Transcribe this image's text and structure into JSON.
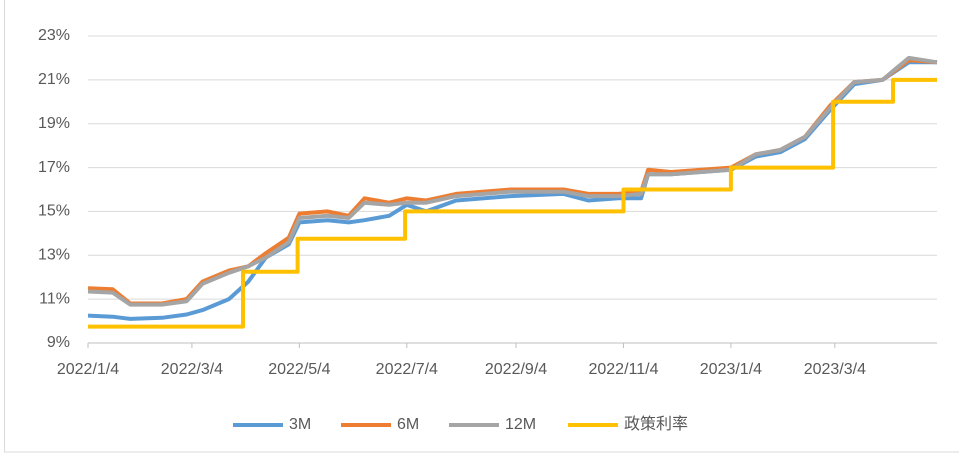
{
  "chart_data": {
    "type": "line",
    "x": [
      "2022/1/4",
      "2022/1/18",
      "2022/1/28",
      "2022/2/15",
      "2022/3/1",
      "2022/3/10",
      "2022/3/25",
      "2022/4/5",
      "2022/4/15",
      "2022/4/28",
      "2022/5/4",
      "2022/5/20",
      "2022/6/1",
      "2022/6/10",
      "2022/6/24",
      "2022/7/4",
      "2022/7/15",
      "2022/8/1",
      "2022/9/1",
      "2022/10/1",
      "2022/10/15",
      "2022/11/1",
      "2022/11/14",
      "2022/11/18",
      "2022/12/1",
      "2023/1/4",
      "2023/1/18",
      "2023/2/1",
      "2023/2/15",
      "2023/3/1",
      "2023/3/15",
      "2023/3/31",
      "2023/4/15",
      "2023/5/1"
    ],
    "series": [
      {
        "name": "3M",
        "color": "#5b9bd5",
        "values": [
          10.25,
          10.2,
          10.1,
          10.15,
          10.3,
          10.5,
          11.0,
          11.8,
          12.9,
          13.5,
          14.5,
          14.6,
          14.5,
          14.6,
          14.8,
          15.3,
          15.0,
          15.5,
          15.7,
          15.8,
          15.5,
          15.6,
          15.6,
          16.7,
          16.7,
          16.9,
          17.5,
          17.7,
          18.3,
          19.6,
          20.8,
          21.0,
          21.8,
          21.8
        ]
      },
      {
        "name": "6M",
        "color": "#ed7d31",
        "values": [
          11.5,
          11.45,
          10.8,
          10.8,
          11.0,
          11.8,
          12.3,
          12.5,
          13.1,
          13.8,
          14.9,
          15.0,
          14.8,
          15.6,
          15.4,
          15.6,
          15.5,
          15.8,
          16.0,
          16.0,
          15.8,
          15.8,
          15.9,
          16.9,
          16.8,
          17.0,
          17.6,
          17.8,
          18.4,
          19.8,
          20.9,
          21.0,
          21.9,
          21.8
        ]
      },
      {
        "name": "12M",
        "color": "#a5a5a5",
        "values": [
          11.35,
          11.3,
          10.75,
          10.75,
          10.9,
          11.7,
          12.2,
          12.5,
          12.9,
          13.6,
          14.7,
          14.8,
          14.7,
          15.4,
          15.3,
          15.4,
          15.4,
          15.7,
          15.9,
          15.9,
          15.7,
          15.7,
          15.8,
          16.7,
          16.7,
          16.9,
          17.6,
          17.8,
          18.4,
          19.7,
          20.9,
          21.0,
          22.0,
          21.8
        ]
      },
      {
        "name": "政策利率",
        "color": "#ffc000",
        "x": [
          "2022/1/4",
          "2022/4/2",
          "2022/4/2",
          "2022/5/3",
          "2022/5/3",
          "2022/7/3",
          "2022/7/3",
          "2022/11/4",
          "2022/11/4",
          "2023/1/4",
          "2023/1/4",
          "2023/3/3",
          "2023/3/3",
          "2023/4/6",
          "2023/4/6",
          "2023/5/1"
        ],
        "values": [
          9.75,
          9.75,
          12.25,
          12.25,
          13.75,
          13.75,
          15,
          15,
          16,
          16,
          17,
          17,
          20,
          20,
          21,
          21
        ]
      }
    ],
    "xlim": [
      "2022/1/4",
      "2023/5/1"
    ],
    "xticks": [
      "2022/1/4",
      "2022/3/4",
      "2022/5/4",
      "2022/7/4",
      "2022/9/4",
      "2022/11/4",
      "2023/1/4",
      "2023/3/4"
    ],
    "ylim": [
      9,
      23
    ],
    "yticks": [
      {
        "value": 9,
        "label": "9%"
      },
      {
        "value": 11,
        "label": "11%"
      },
      {
        "value": 13,
        "label": "13%"
      },
      {
        "value": 15,
        "label": "15%"
      },
      {
        "value": 17,
        "label": "17%"
      },
      {
        "value": 19,
        "label": "19%"
      },
      {
        "value": 21,
        "label": "21%"
      },
      {
        "value": 23,
        "label": "23%"
      }
    ],
    "grid": true,
    "legend": "bottom"
  }
}
